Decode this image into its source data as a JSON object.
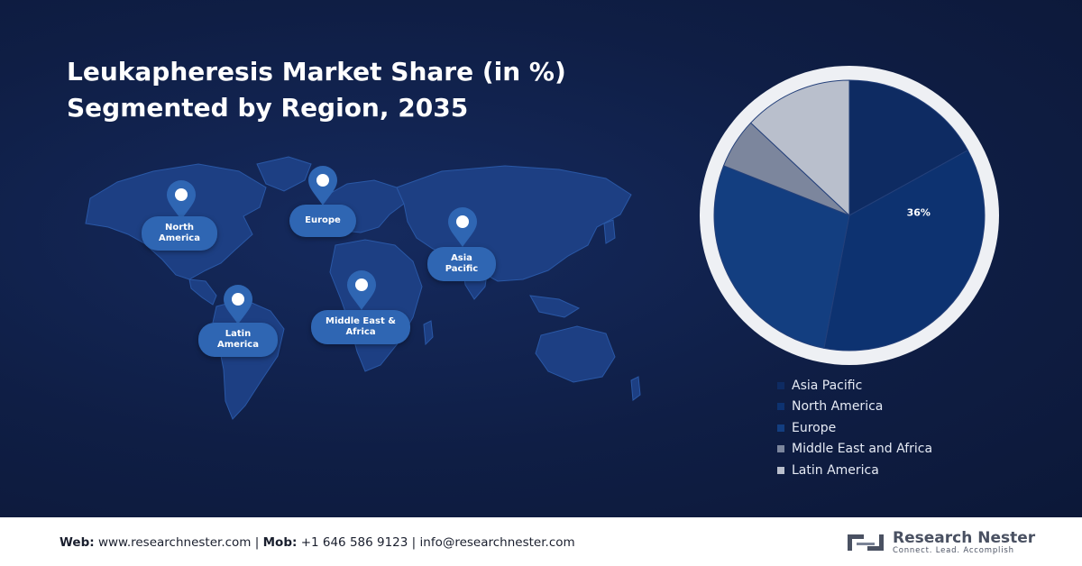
{
  "title": {
    "line1": "Leukapheresis Market Share (in %)",
    "line2": "Segmented by Region, 2035"
  },
  "map_labels": {
    "north_america": "North America",
    "europe": "Europe",
    "asia_pacific": "Asia Pacific",
    "latin_america": "Latin America",
    "middle_east_africa": "Middle East & Africa"
  },
  "chart_data": {
    "type": "pie",
    "categories": [
      "Asia Pacific",
      "North America",
      "Europe",
      "Middle East and Africa",
      "Latin America"
    ],
    "values": [
      17,
      36,
      28,
      6,
      13
    ],
    "data_labels": {
      "North America": "36%"
    },
    "legend_position": "bottom-right",
    "colors": [
      "#0e2b62",
      "#0d3270",
      "#133e80",
      "#7c869d",
      "#b9bfcc"
    ]
  },
  "footer": {
    "web_label": "Web:",
    "web_value": "www.researchnester.com",
    "sep1": "|",
    "mob_label": "Mob:",
    "mob_value": "+1 646 586 9123",
    "sep2": "|",
    "email": "info@researchnester.com"
  },
  "logo": {
    "name": "Research Nester",
    "tagline": "Connect. Lead. Accomplish"
  },
  "colors": {
    "background": "#0f1e45",
    "map_fill": "#1d3f83",
    "label_bubble": "#2f66b3"
  }
}
